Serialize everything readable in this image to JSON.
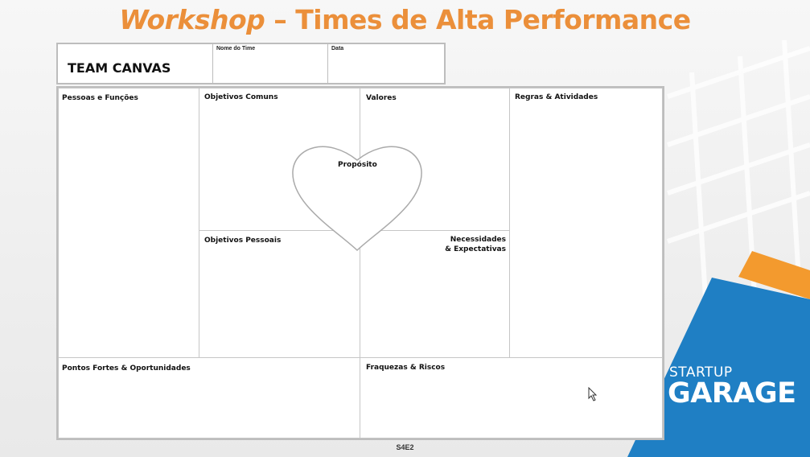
{
  "slide": {
    "title_italic": "Workshop",
    "title_rest": " – Times de Alta Performance",
    "footer_code": "S4E2"
  },
  "header": {
    "team_canvas": "TEAM CANVAS",
    "team_name_label": "Nome do Time",
    "date_label": "Data"
  },
  "sections": {
    "pessoas_funcoes": "Pessoas e Funções",
    "objetivos_comuns": "Objetivos Comuns",
    "valores": "Valores",
    "regras_atividades": "Regras & Atividades",
    "proposito": "Propósito",
    "objetivos_pessoais": "Objetivos Pessoais",
    "necessidades_1": "Necessidades",
    "necessidades_2": "& Expectativas",
    "pontos_fortes": "Pontos Fortes & Oportunidades",
    "fraquezas_riscos": "Fraquezas & Riscos"
  },
  "logo": {
    "line1": "STARTUP",
    "line2": "GARAGE"
  },
  "colors": {
    "title_orange": "#eb8f3a",
    "logo_blue": "#1f7fc4",
    "logo_orange": "#f39a2e"
  }
}
